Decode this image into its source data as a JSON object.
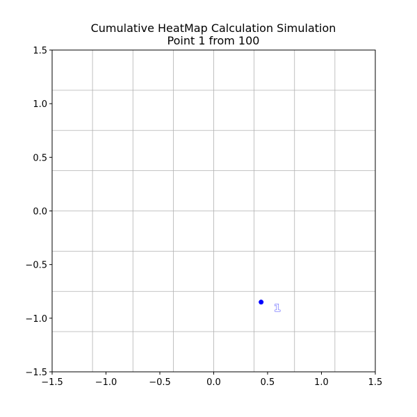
{
  "chart_data": {
    "type": "scatter",
    "title": "Cumulative HeatMap Calculation Simulation",
    "subtitle": "Point 1 from 100",
    "xlabel": "",
    "ylabel": "",
    "xlim": [
      -1.5,
      1.5
    ],
    "ylim": [
      -1.5,
      1.5
    ],
    "x_ticks": [
      -1.5,
      -1.0,
      -0.5,
      0.0,
      0.5,
      1.0,
      1.5
    ],
    "y_ticks": [
      -1.5,
      -1.0,
      -0.5,
      0.0,
      0.5,
      1.0,
      1.5
    ],
    "x_tick_labels": [
      "−1.5",
      "−1.0",
      "−0.5",
      "0.0",
      "0.5",
      "1.0",
      "1.5"
    ],
    "y_tick_labels": [
      "−1.5",
      "−1.0",
      "−0.5",
      "0.0",
      "0.5",
      "1.0",
      "1.5"
    ],
    "grid": true,
    "grid_x": [
      -1.125,
      -0.75,
      -0.375,
      0.0,
      0.375,
      0.75,
      1.125
    ],
    "grid_y": [
      -1.125,
      -0.75,
      -0.375,
      0.0,
      0.375,
      0.75,
      1.125
    ],
    "points": [
      {
        "x": 0.44,
        "y": -0.85,
        "color": "#0000ff"
      }
    ],
    "annotations": [
      {
        "text": "1",
        "x": 0.59,
        "y": -0.905,
        "color": "#0000ff"
      }
    ]
  }
}
